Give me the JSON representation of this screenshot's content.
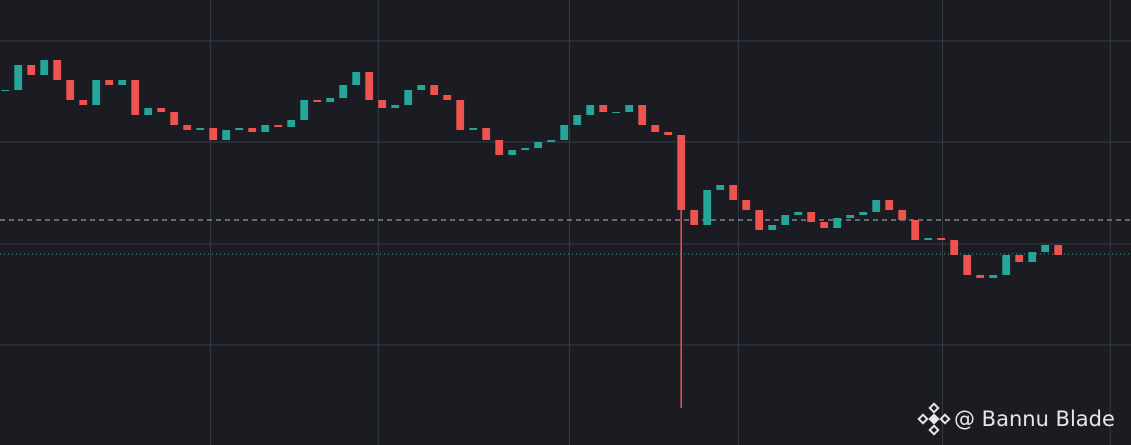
{
  "chart_data": {
    "type": "candlestick",
    "watermark": "@ Bannu Blade",
    "up_color": "#26a69a",
    "down_color": "#ef5350",
    "grid": true,
    "xlim": [
      -0.4,
      86.6
    ],
    "xticks": [
      15.8,
      28.7,
      43.4,
      56.4,
      72.1,
      85.0
    ],
    "ylim": [
      0,
      445
    ],
    "yticks": [
      100,
      201,
      303,
      404
    ],
    "price_lines": [
      {
        "value": 225,
        "style": "dashed",
        "color": "#b2b5be"
      },
      {
        "value": 191,
        "style": "dotted",
        "color": "#26a69a"
      }
    ],
    "close": [
      355,
      380,
      370,
      385,
      365,
      345,
      340,
      365,
      360,
      365,
      330,
      337,
      333,
      320,
      315,
      317,
      305,
      315,
      317,
      313,
      320,
      318,
      325,
      345,
      343,
      347,
      360,
      373,
      345,
      337,
      340,
      355,
      360,
      350,
      345,
      315,
      317,
      305,
      290,
      295,
      297,
      303,
      305,
      320,
      330,
      340,
      333,
      333,
      340,
      320,
      313,
      310,
      235,
      220,
      255,
      260,
      245,
      235,
      215,
      220,
      230,
      233,
      223,
      217,
      227,
      230,
      233,
      245,
      235,
      225,
      205,
      207,
      205,
      190,
      170,
      167,
      170,
      190,
      183,
      193,
      200,
      190
    ],
    "low": [
      null,
      null,
      null,
      null,
      null,
      null,
      null,
      null,
      null,
      null,
      null,
      null,
      null,
      null,
      null,
      null,
      null,
      null,
      null,
      null,
      null,
      null,
      null,
      null,
      null,
      null,
      null,
      null,
      null,
      null,
      null,
      null,
      null,
      null,
      null,
      null,
      null,
      null,
      null,
      null,
      null,
      null,
      null,
      null,
      null,
      null,
      null,
      null,
      null,
      null,
      null,
      null,
      37,
      null,
      null,
      null,
      null,
      null,
      null,
      null,
      null,
      null,
      null,
      null,
      null,
      null,
      null,
      null,
      null,
      null,
      null,
      null,
      null,
      null,
      null,
      null,
      null,
      null,
      null,
      null,
      null,
      null
    ]
  }
}
